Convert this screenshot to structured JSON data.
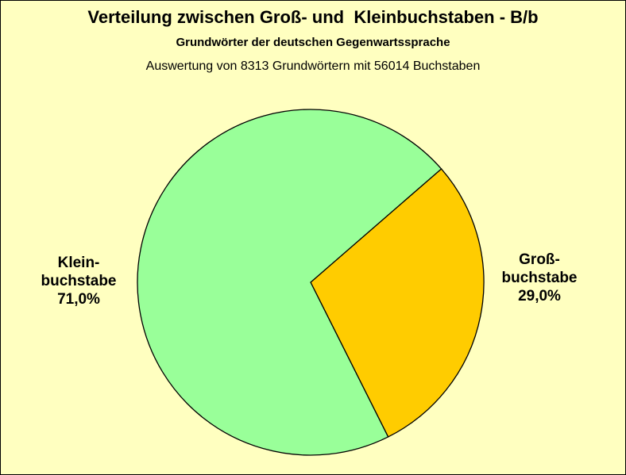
{
  "chart_data": {
    "type": "pie",
    "title": "Verteilung zwischen Groß- und  Kleinbuchstaben - B/b",
    "subtitle": "Grundwörter der deutschen Gegenwartssprache",
    "note": "Auswertung von 8313 Grundwörtern mit 56014 Buchstaben",
    "slices": [
      {
        "name_lines": [
          "Groß-",
          "buchstabe"
        ],
        "value": 29.0,
        "value_label": "29,0%",
        "color": "#ffcc00"
      },
      {
        "name_lines": [
          "Klein-",
          "buchstabe"
        ],
        "value": 71.0,
        "value_label": "71,0%",
        "color": "#99ff99"
      }
    ],
    "legend": "none"
  }
}
